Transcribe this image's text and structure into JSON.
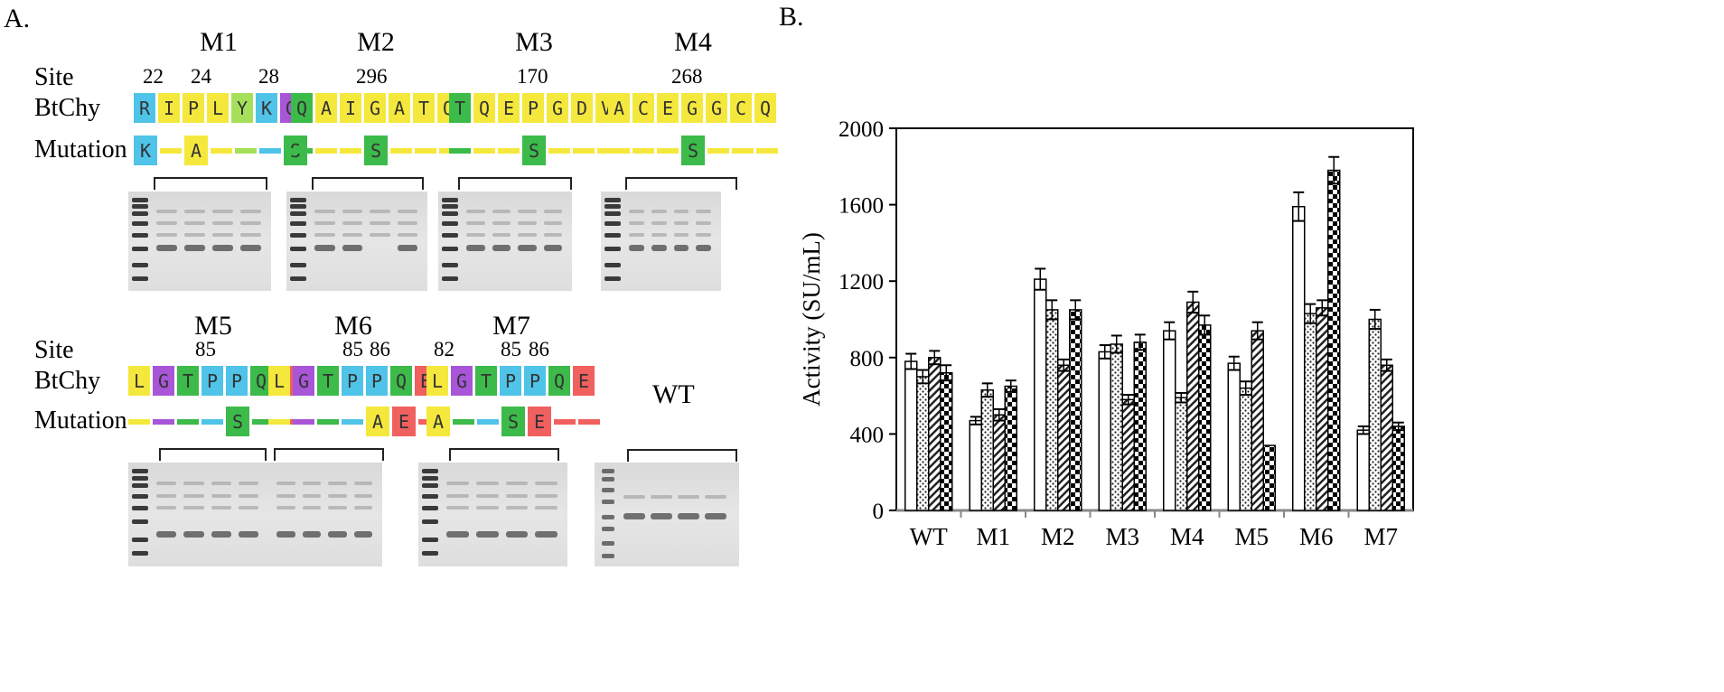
{
  "panelA": {
    "label": "A.",
    "row_labels": {
      "site": "Site",
      "btchy": "BtChy",
      "mutation": "Mutation"
    },
    "mutants": [
      {
        "id": "M1",
        "sites": [
          "22",
          "24",
          "28"
        ],
        "seq": [
          [
            "R",
            "#4fc3e8"
          ],
          [
            "I",
            "#f5e83c"
          ],
          [
            "P",
            "#f5e83c"
          ],
          [
            "L",
            "#f5e83c"
          ],
          [
            "Y",
            "#a6e05a"
          ],
          [
            "K",
            "#4fc3e8"
          ],
          [
            "G",
            "#a855d8"
          ]
        ],
        "mut": [
          [
            "K",
            "#4fc3e8"
          ],
          [
            "-",
            "#f5e83c"
          ],
          [
            "A",
            "#f5e83c"
          ],
          [
            "-",
            "#f5e83c"
          ],
          [
            "-",
            "#a6e05a"
          ],
          [
            "-",
            "#4fc3e8"
          ],
          [
            "S",
            "#3cba4a"
          ]
        ]
      },
      {
        "id": "M2",
        "sites": [
          "296"
        ],
        "seq": [
          [
            "Q",
            "#3cba4a"
          ],
          [
            "A",
            "#f5e83c"
          ],
          [
            "I",
            "#f5e83c"
          ],
          [
            "G",
            "#f5e83c"
          ],
          [
            "A",
            "#f5e83c"
          ],
          [
            "T",
            "#f5e83c"
          ],
          [
            "Q",
            "#f5e83c"
          ]
        ],
        "mut": [
          [
            "-",
            "#3cba4a"
          ],
          [
            "-",
            "#f5e83c"
          ],
          [
            "-",
            "#f5e83c"
          ],
          [
            "S",
            "#3cba4a"
          ],
          [
            "-",
            "#f5e83c"
          ],
          [
            "-",
            "#f5e83c"
          ],
          [
            "-",
            "#f5e83c"
          ]
        ]
      },
      {
        "id": "M3",
        "sites": [
          "170"
        ],
        "seq": [
          [
            "T",
            "#3cba4a"
          ],
          [
            "Q",
            "#f5e83c"
          ],
          [
            "E",
            "#f5e83c"
          ],
          [
            "P",
            "#f5e83c"
          ],
          [
            "G",
            "#f5e83c"
          ],
          [
            "D",
            "#f5e83c"
          ],
          [
            "V",
            "#f5e83c"
          ]
        ],
        "mut": [
          [
            "-",
            "#3cba4a"
          ],
          [
            "-",
            "#f5e83c"
          ],
          [
            "-",
            "#f5e83c"
          ],
          [
            "S",
            "#3cba4a"
          ],
          [
            "-",
            "#f5e83c"
          ],
          [
            "-",
            "#f5e83c"
          ],
          [
            "-",
            "#f5e83c"
          ]
        ]
      },
      {
        "id": "M4",
        "sites": [
          "268"
        ],
        "seq": [
          [
            "A",
            "#f5e83c"
          ],
          [
            "C",
            "#f5e83c"
          ],
          [
            "E",
            "#f5e83c"
          ],
          [
            "G",
            "#f5e83c"
          ],
          [
            "G",
            "#f5e83c"
          ],
          [
            "C",
            "#f5e83c"
          ],
          [
            "Q",
            "#f5e83c"
          ]
        ],
        "mut": [
          [
            "-",
            "#f5e83c"
          ],
          [
            "-",
            "#f5e83c"
          ],
          [
            "-",
            "#f5e83c"
          ],
          [
            "S",
            "#3cba4a"
          ],
          [
            "-",
            "#f5e83c"
          ],
          [
            "-",
            "#f5e83c"
          ],
          [
            "-",
            "#f5e83c"
          ]
        ]
      },
      {
        "id": "M5",
        "sites": [
          "85"
        ],
        "seq": [
          [
            "L",
            "#f5e83c"
          ],
          [
            "G",
            "#a855d8"
          ],
          [
            "T",
            "#3cba4a"
          ],
          [
            "P",
            "#4fc3e8"
          ],
          [
            "P",
            "#4fc3e8"
          ],
          [
            "Q",
            "#3cba4a"
          ],
          [
            "E",
            "#f0605e"
          ]
        ],
        "mut": [
          [
            "-",
            "#f5e83c"
          ],
          [
            "-",
            "#a855d8"
          ],
          [
            "-",
            "#3cba4a"
          ],
          [
            "-",
            "#4fc3e8"
          ],
          [
            "S",
            "#3cba4a"
          ],
          [
            "-",
            "#3cba4a"
          ],
          [
            "-",
            "#f0605e"
          ]
        ]
      },
      {
        "id": "M6",
        "sites": [
          "85",
          "86"
        ],
        "seq": [
          [
            "L",
            "#f5e83c"
          ],
          [
            "G",
            "#a855d8"
          ],
          [
            "T",
            "#3cba4a"
          ],
          [
            "P",
            "#4fc3e8"
          ],
          [
            "P",
            "#4fc3e8"
          ],
          [
            "Q",
            "#3cba4a"
          ],
          [
            "E",
            "#f0605e"
          ]
        ],
        "mut": [
          [
            "-",
            "#f5e83c"
          ],
          [
            "-",
            "#a855d8"
          ],
          [
            "-",
            "#3cba4a"
          ],
          [
            "-",
            "#4fc3e8"
          ],
          [
            "A",
            "#f5e83c"
          ],
          [
            "E",
            "#f0605e"
          ],
          [
            "-",
            "#f0605e"
          ]
        ]
      },
      {
        "id": "M7",
        "sites": [
          "82",
          "85",
          "86"
        ],
        "seq": [
          [
            "L",
            "#f5e83c"
          ],
          [
            "G",
            "#a855d8"
          ],
          [
            "T",
            "#3cba4a"
          ],
          [
            "P",
            "#4fc3e8"
          ],
          [
            "P",
            "#4fc3e8"
          ],
          [
            "Q",
            "#3cba4a"
          ],
          [
            "E",
            "#f0605e"
          ]
        ],
        "mut": [
          [
            "A",
            "#f5e83c"
          ],
          [
            "-",
            "#3cba4a"
          ],
          [
            "-",
            "#4fc3e8"
          ],
          [
            "S",
            "#3cba4a"
          ],
          [
            "E",
            "#f0605e"
          ],
          [
            "-",
            "#f0605e"
          ],
          [
            "-",
            "#f0605e"
          ]
        ]
      }
    ],
    "wt_label": "WT"
  },
  "panelB": {
    "label": "B.",
    "chart_data": {
      "type": "bar",
      "categories": [
        "WT",
        "M1",
        "M2",
        "M3",
        "M4",
        "M5",
        "M6",
        "M7"
      ],
      "ylabel": "Activity (SU/mL)",
      "ylim": [
        0,
        2000
      ],
      "yticks": [
        "0",
        "400",
        "800",
        "1200",
        "1600",
        "2000"
      ],
      "series": [
        {
          "pattern": "open",
          "values": [
            780,
            470,
            1210,
            830,
            940,
            770,
            1590,
            420
          ]
        },
        {
          "pattern": "dotted",
          "values": [
            700,
            630,
            1050,
            870,
            590,
            640,
            1030,
            1000
          ]
        },
        {
          "pattern": "hatched",
          "values": [
            800,
            500,
            760,
            580,
            1090,
            940,
            1060,
            760
          ]
        },
        {
          "pattern": "checked",
          "values": [
            720,
            650,
            1050,
            880,
            970,
            340,
            1780,
            440
          ]
        }
      ],
      "errors": [
        [
          40,
          20,
          55,
          35,
          45,
          35,
          75,
          20
        ],
        [
          35,
          35,
          50,
          45,
          25,
          35,
          50,
          50
        ],
        [
          35,
          30,
          30,
          25,
          55,
          45,
          40,
          30
        ],
        [
          40,
          30,
          50,
          40,
          50,
          0,
          70,
          20
        ]
      ]
    }
  }
}
